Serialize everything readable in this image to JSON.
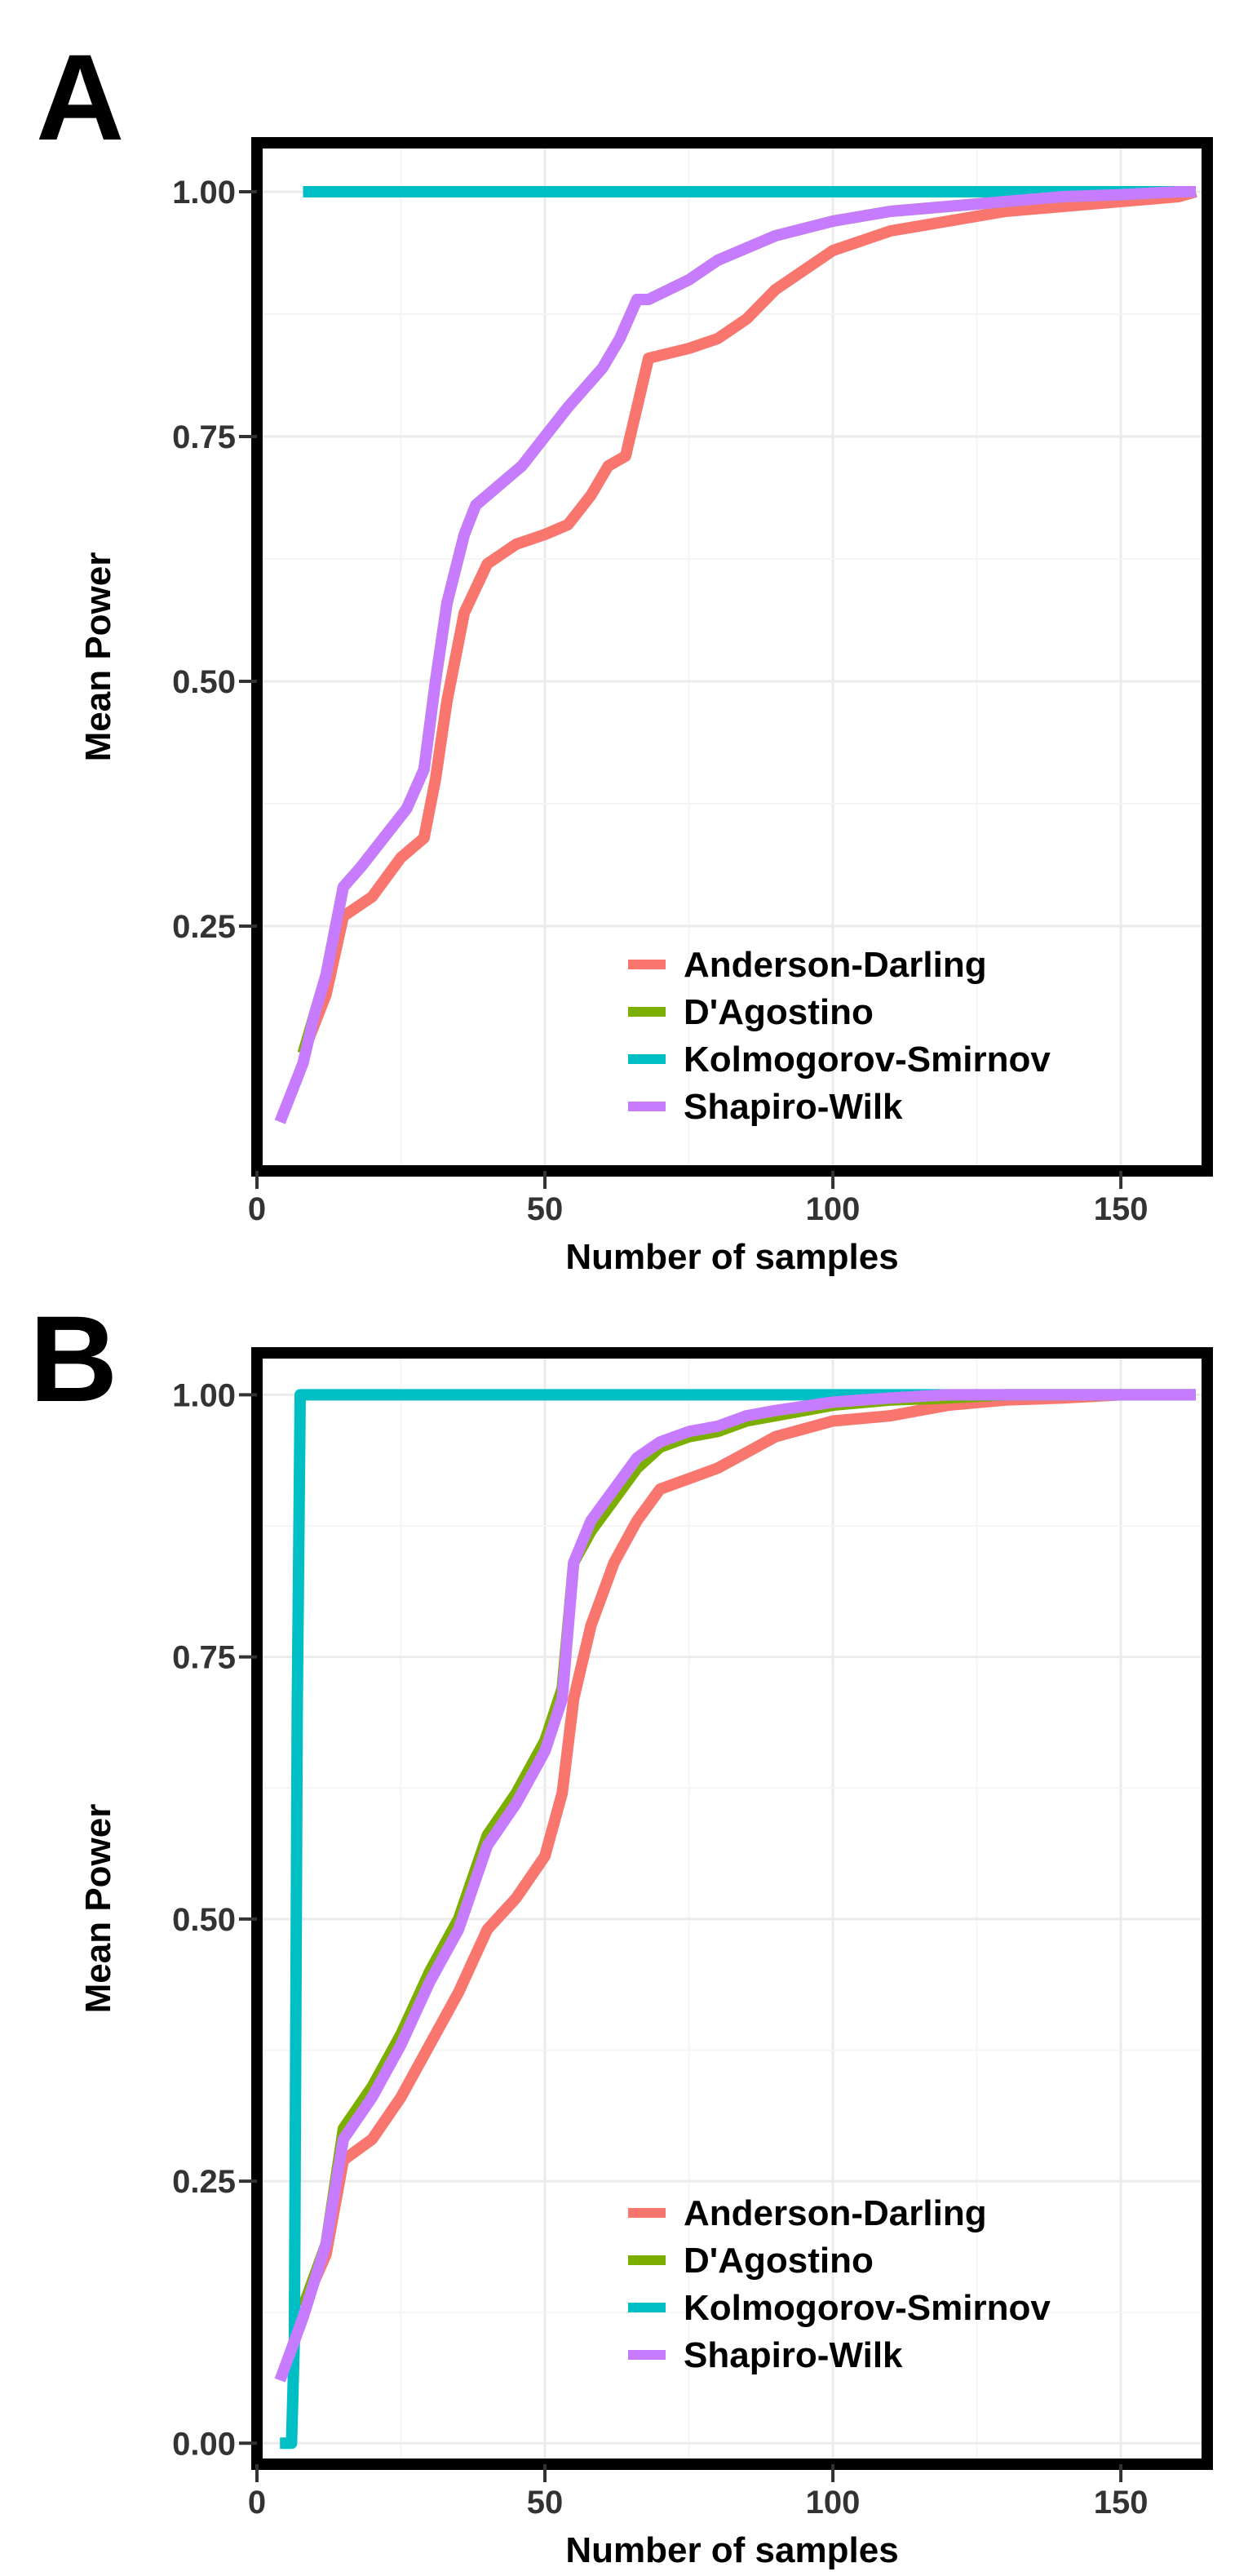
{
  "panels": [
    {
      "letter": "A"
    },
    {
      "letter": "B"
    }
  ],
  "chart_data": [
    {
      "type": "line",
      "xlabel": "Number of samples",
      "ylabel": "Mean Power",
      "xlim": [
        0,
        165
      ],
      "ylim": [
        0.0,
        1.05
      ],
      "x_ticks": [
        "0",
        "50",
        "100",
        "150"
      ],
      "y_ticks": [
        "0.25",
        "0.50",
        "0.75",
        "1.00"
      ],
      "grid": true,
      "legend_position": "bottom-right",
      "series": [
        {
          "name": "Anderson-Darling",
          "color": "#F8766D",
          "x": [
            8,
            12,
            15,
            20,
            25,
            29,
            31,
            33,
            36,
            40,
            45,
            50,
            54,
            58,
            61,
            64,
            66,
            68,
            75,
            80,
            85,
            90,
            95,
            100,
            110,
            120,
            130,
            140,
            150,
            160,
            163
          ],
          "y": [
            0.12,
            0.18,
            0.26,
            0.28,
            0.32,
            0.34,
            0.4,
            0.48,
            0.57,
            0.62,
            0.64,
            0.65,
            0.66,
            0.69,
            0.72,
            0.73,
            0.78,
            0.83,
            0.84,
            0.85,
            0.87,
            0.9,
            0.92,
            0.94,
            0.96,
            0.97,
            0.98,
            0.985,
            0.99,
            0.995,
            1.0
          ]
        },
        {
          "name": "D'Agostino",
          "color": "#7CAE00",
          "x": [
            8,
            12,
            15,
            18,
            22,
            26,
            29,
            31,
            33,
            36,
            38,
            42,
            46,
            50,
            54,
            57,
            60,
            63,
            66,
            68,
            75,
            80,
            90,
            100,
            110,
            120,
            130,
            140,
            150,
            160,
            163
          ],
          "y": [
            0.12,
            0.2,
            0.29,
            0.31,
            0.34,
            0.37,
            0.41,
            0.5,
            0.58,
            0.65,
            0.68,
            0.7,
            0.72,
            0.75,
            0.78,
            0.8,
            0.82,
            0.85,
            0.89,
            0.89,
            0.91,
            0.93,
            0.955,
            0.97,
            0.98,
            0.985,
            0.99,
            0.995,
            0.997,
            1.0,
            1.0
          ]
        },
        {
          "name": "Kolmogorov-Smirnov",
          "color": "#00BFC4",
          "x": [
            8,
            163
          ],
          "y": [
            1.0,
            1.0
          ]
        },
        {
          "name": "Shapiro-Wilk",
          "color": "#C77CFF",
          "x": [
            4,
            6,
            8,
            10,
            12,
            15,
            18,
            22,
            26,
            29,
            31,
            33,
            36,
            38,
            42,
            46,
            50,
            54,
            57,
            60,
            63,
            66,
            68,
            75,
            80,
            90,
            100,
            110,
            120,
            130,
            140,
            150,
            160,
            163
          ],
          "y": [
            0.05,
            0.08,
            0.11,
            0.16,
            0.2,
            0.29,
            0.31,
            0.34,
            0.37,
            0.41,
            0.5,
            0.58,
            0.65,
            0.68,
            0.7,
            0.72,
            0.75,
            0.78,
            0.8,
            0.82,
            0.85,
            0.89,
            0.89,
            0.91,
            0.93,
            0.955,
            0.97,
            0.98,
            0.985,
            0.99,
            0.995,
            0.997,
            1.0,
            1.0
          ]
        }
      ]
    },
    {
      "type": "line",
      "xlabel": "Number of samples",
      "ylabel": "Mean Power",
      "xlim": [
        0,
        165
      ],
      "ylim": [
        -0.02,
        1.04
      ],
      "x_ticks": [
        "0",
        "50",
        "100",
        "150"
      ],
      "y_ticks": [
        "0.00",
        "0.25",
        "0.50",
        "0.75",
        "1.00"
      ],
      "grid": true,
      "legend_position": "bottom-right",
      "series": [
        {
          "name": "Anderson-Darling",
          "color": "#F8766D",
          "x": [
            8,
            12,
            15,
            20,
            25,
            30,
            35,
            40,
            45,
            50,
            53,
            55,
            58,
            62,
            66,
            70,
            75,
            80,
            85,
            90,
            100,
            110,
            120,
            130,
            140,
            150,
            160,
            163
          ],
          "y": [
            0.13,
            0.18,
            0.27,
            0.29,
            0.33,
            0.38,
            0.43,
            0.49,
            0.52,
            0.56,
            0.62,
            0.71,
            0.78,
            0.84,
            0.88,
            0.91,
            0.92,
            0.93,
            0.945,
            0.96,
            0.975,
            0.98,
            0.99,
            0.995,
            0.997,
            1.0,
            1.0,
            1.0
          ]
        },
        {
          "name": "D'Agostino",
          "color": "#7CAE00",
          "x": [
            8,
            12,
            15,
            20,
            25,
            30,
            35,
            40,
            45,
            50,
            53,
            55,
            58,
            62,
            66,
            70,
            75,
            80,
            85,
            90,
            100,
            110,
            120,
            130,
            140,
            150,
            160,
            163
          ],
          "y": [
            0.13,
            0.19,
            0.3,
            0.34,
            0.39,
            0.45,
            0.5,
            0.58,
            0.62,
            0.67,
            0.72,
            0.84,
            0.87,
            0.9,
            0.93,
            0.95,
            0.96,
            0.965,
            0.975,
            0.98,
            0.99,
            0.995,
            0.997,
            1.0,
            1.0,
            1.0,
            1.0,
            1.0
          ]
        },
        {
          "name": "Kolmogorov-Smirnov",
          "color": "#00BFC4",
          "x": [
            4,
            6,
            6.5,
            7,
            7.5,
            163
          ],
          "y": [
            0.0,
            0.0,
            0.1,
            0.7,
            1.0,
            1.0
          ]
        },
        {
          "name": "Shapiro-Wilk",
          "color": "#C77CFF",
          "x": [
            4,
            6,
            8,
            12,
            15,
            20,
            25,
            30,
            35,
            40,
            45,
            50,
            53,
            55,
            58,
            62,
            66,
            70,
            75,
            80,
            85,
            90,
            100,
            110,
            120,
            130,
            140,
            150,
            160,
            163
          ],
          "y": [
            0.06,
            0.09,
            0.12,
            0.19,
            0.29,
            0.33,
            0.38,
            0.44,
            0.49,
            0.57,
            0.61,
            0.66,
            0.71,
            0.84,
            0.88,
            0.91,
            0.94,
            0.955,
            0.965,
            0.97,
            0.98,
            0.985,
            0.993,
            0.997,
            1.0,
            1.0,
            1.0,
            1.0,
            1.0,
            1.0
          ]
        }
      ]
    }
  ]
}
